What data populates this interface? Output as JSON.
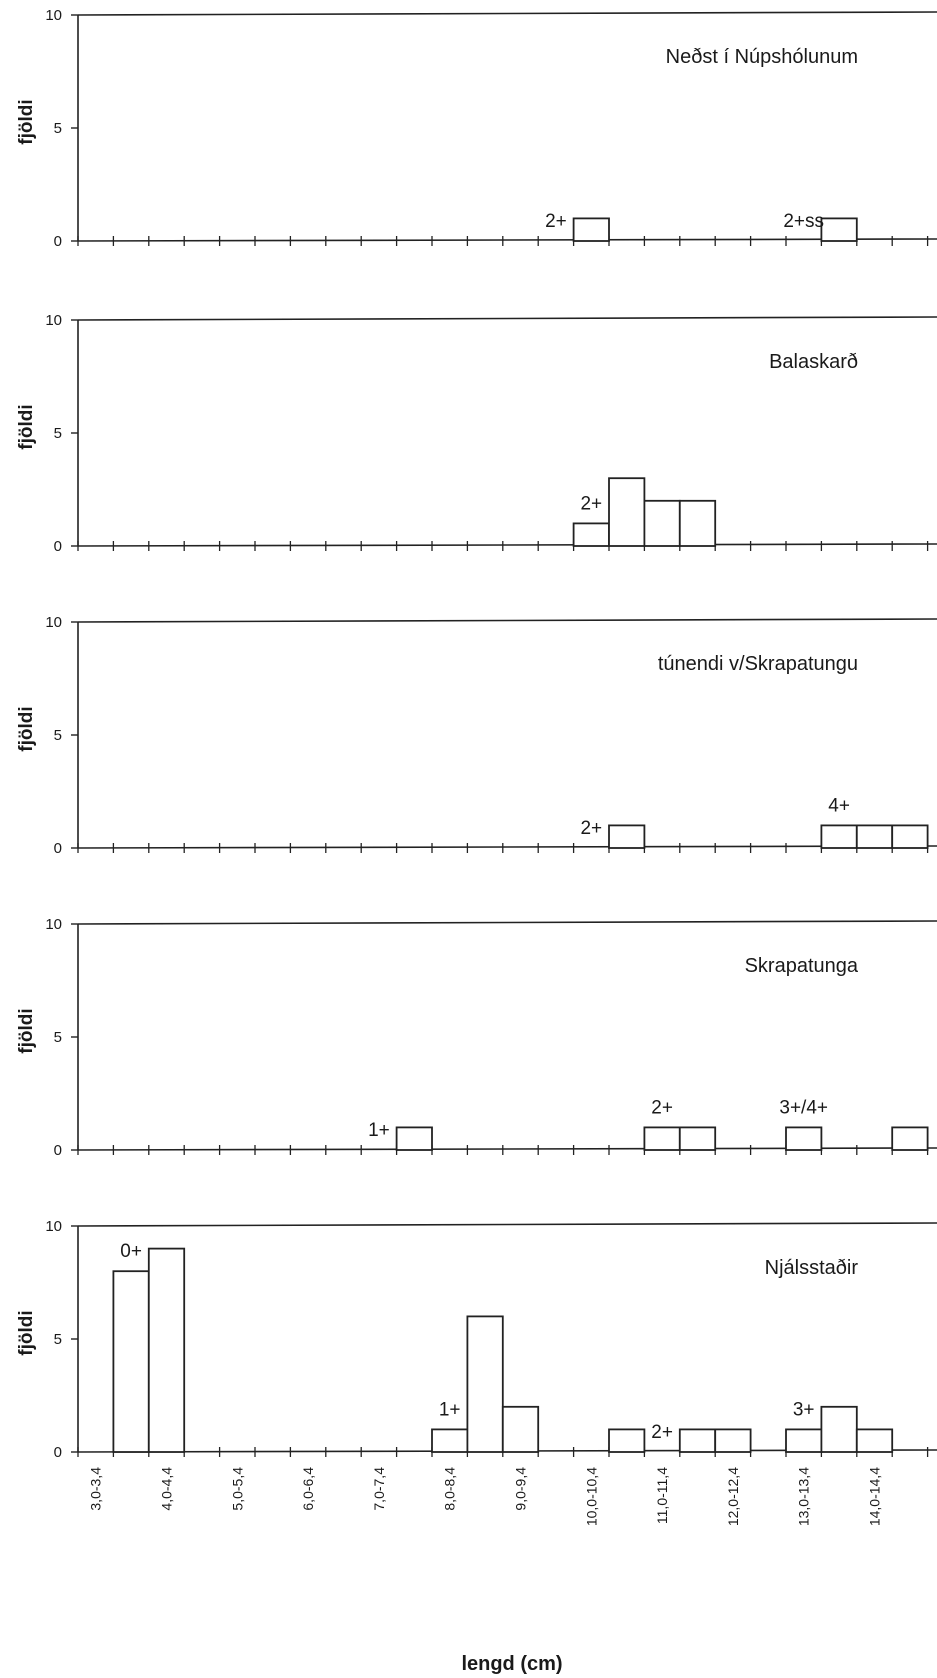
{
  "chart_data": {
    "type": "bar",
    "xlabel": "lengd (cm)",
    "categories": [
      "3,0-3,4",
      "3,5-3,9",
      "4,0-4,4",
      "4,5-4,9",
      "5,0-5,4",
      "5,5-5,9",
      "6,0-6,4",
      "6,5-6,9",
      "7,0-7,4",
      "7,5-7,9",
      "8,0-8,4",
      "8,5-8,9",
      "9,0-9,4",
      "9,5-9,9",
      "10,0-10,4",
      "10,5-10,9",
      "11,0-11,4",
      "11,5-11,9",
      "12,0-12,4",
      "12,5-12,9",
      "13,0-13,4",
      "13,5-13,9",
      "14,0-14,4",
      "14,5-14,9"
    ],
    "tick_labels": [
      "3,0-3,4",
      "4,0-4,4",
      "5,0-5,4",
      "6,0-6,4",
      "7,0-7,4",
      "8,0-8,4",
      "9,0-9,4",
      "10,0-10,4",
      "11,0-11,4",
      "12,0-12,4",
      "13,0-13,4",
      "14,0-14,4"
    ],
    "ylim": [
      0,
      10
    ],
    "yticks": [
      "0",
      "5",
      "10"
    ],
    "grid": false,
    "panels": [
      {
        "title": "Neðst í Núpshólunum",
        "ylabel": "fjöldi",
        "values": [
          0,
          0,
          0,
          0,
          0,
          0,
          0,
          0,
          0,
          0,
          0,
          0,
          0,
          0,
          1,
          0,
          0,
          0,
          0,
          0,
          0,
          1,
          0,
          0
        ],
        "age_labels": [
          {
            "text": "2+",
            "category": "9,5-9,9"
          },
          {
            "text": "2+ss",
            "category": "13,0-13,4"
          }
        ]
      },
      {
        "title": "Balaskarð",
        "ylabel": "fjöldi",
        "values": [
          0,
          0,
          0,
          0,
          0,
          0,
          0,
          0,
          0,
          0,
          0,
          0,
          0,
          0,
          1,
          3,
          2,
          2,
          0,
          0,
          0,
          0,
          0,
          0
        ],
        "age_labels": [
          {
            "text": "2+",
            "category": "10,0-10,4"
          }
        ]
      },
      {
        "title": "túnendi v/Skrapatungu",
        "ylabel": "fjöldi",
        "values": [
          0,
          0,
          0,
          0,
          0,
          0,
          0,
          0,
          0,
          0,
          0,
          0,
          0,
          0,
          0,
          1,
          0,
          0,
          0,
          0,
          0,
          1,
          1,
          1
        ],
        "age_labels": [
          {
            "text": "2+",
            "category": "10,0-10,4"
          },
          {
            "text": "4+",
            "category": "13,5-13,9"
          }
        ]
      },
      {
        "title": "Skrapatunga",
        "ylabel": "fjöldi",
        "values": [
          0,
          0,
          0,
          0,
          0,
          0,
          0,
          0,
          0,
          1,
          0,
          0,
          0,
          0,
          0,
          0,
          1,
          1,
          0,
          0,
          1,
          0,
          0,
          1
        ],
        "age_labels": [
          {
            "text": "1+",
            "category": "7,0-7,4"
          },
          {
            "text": "2+",
            "category": "11,0-11,4"
          },
          {
            "text": "3+/4+",
            "category": "13,0-13,4"
          }
        ]
      },
      {
        "title": "Njálsstaðir",
        "ylabel": "fjöldi",
        "values": [
          0,
          8,
          9,
          0,
          0,
          0,
          0,
          0,
          0,
          0,
          1,
          6,
          2,
          0,
          0,
          1,
          0,
          1,
          1,
          0,
          1,
          2,
          1,
          0
        ],
        "age_labels": [
          {
            "text": "0+",
            "category": "3,5-3,9"
          },
          {
            "text": "1+",
            "category": "8,0-8,4"
          },
          {
            "text": "2+",
            "category": "11,0-11,4"
          },
          {
            "text": "3+",
            "category": "13,0-13,4"
          }
        ]
      }
    ]
  }
}
